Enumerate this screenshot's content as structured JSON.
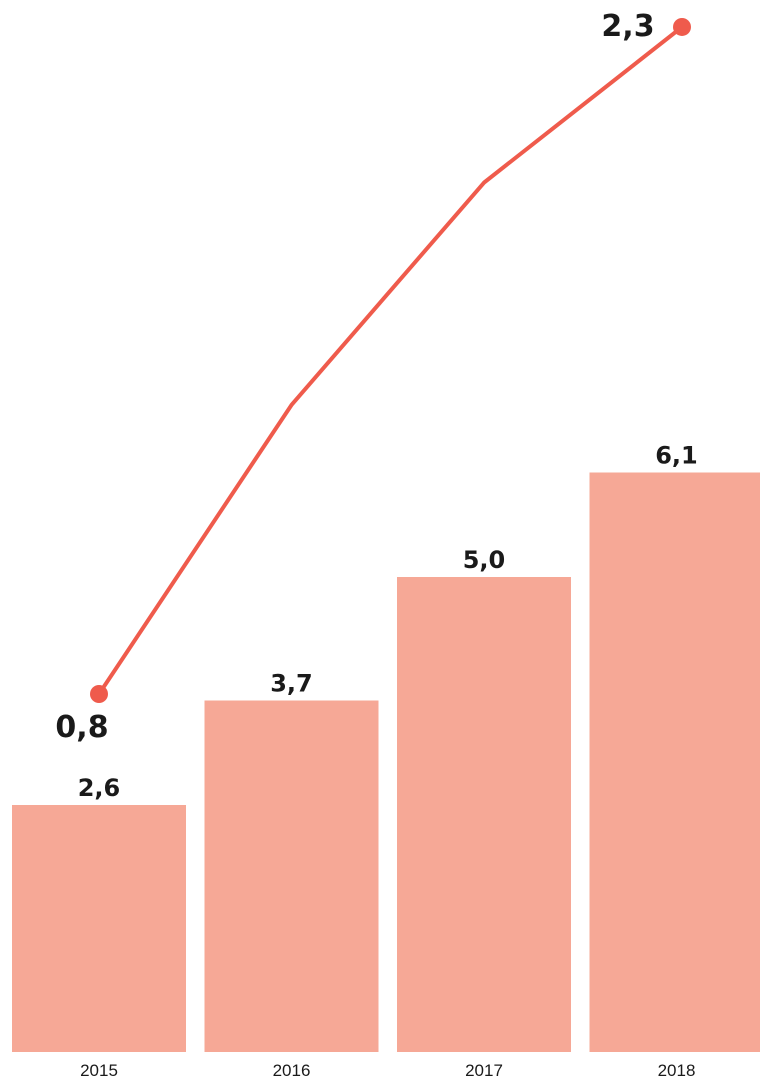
{
  "chart_data": {
    "type": "bar",
    "categories": [
      "2015",
      "2016",
      "2017",
      "2018"
    ],
    "series": [
      {
        "type": "bar",
        "values": [
          2.6,
          3.7,
          5.0,
          6.1
        ],
        "labels": [
          "2,6",
          "3,7",
          "5,0",
          "6,1"
        ],
        "color": "#f6a896"
      },
      {
        "type": "line",
        "values": [
          0.8,
          1.45,
          1.95,
          2.3
        ],
        "labels": [
          "0,8",
          "",
          "",
          "2,3"
        ],
        "color": "#ef5b4c"
      }
    ],
    "grid": false,
    "legend": "none"
  }
}
